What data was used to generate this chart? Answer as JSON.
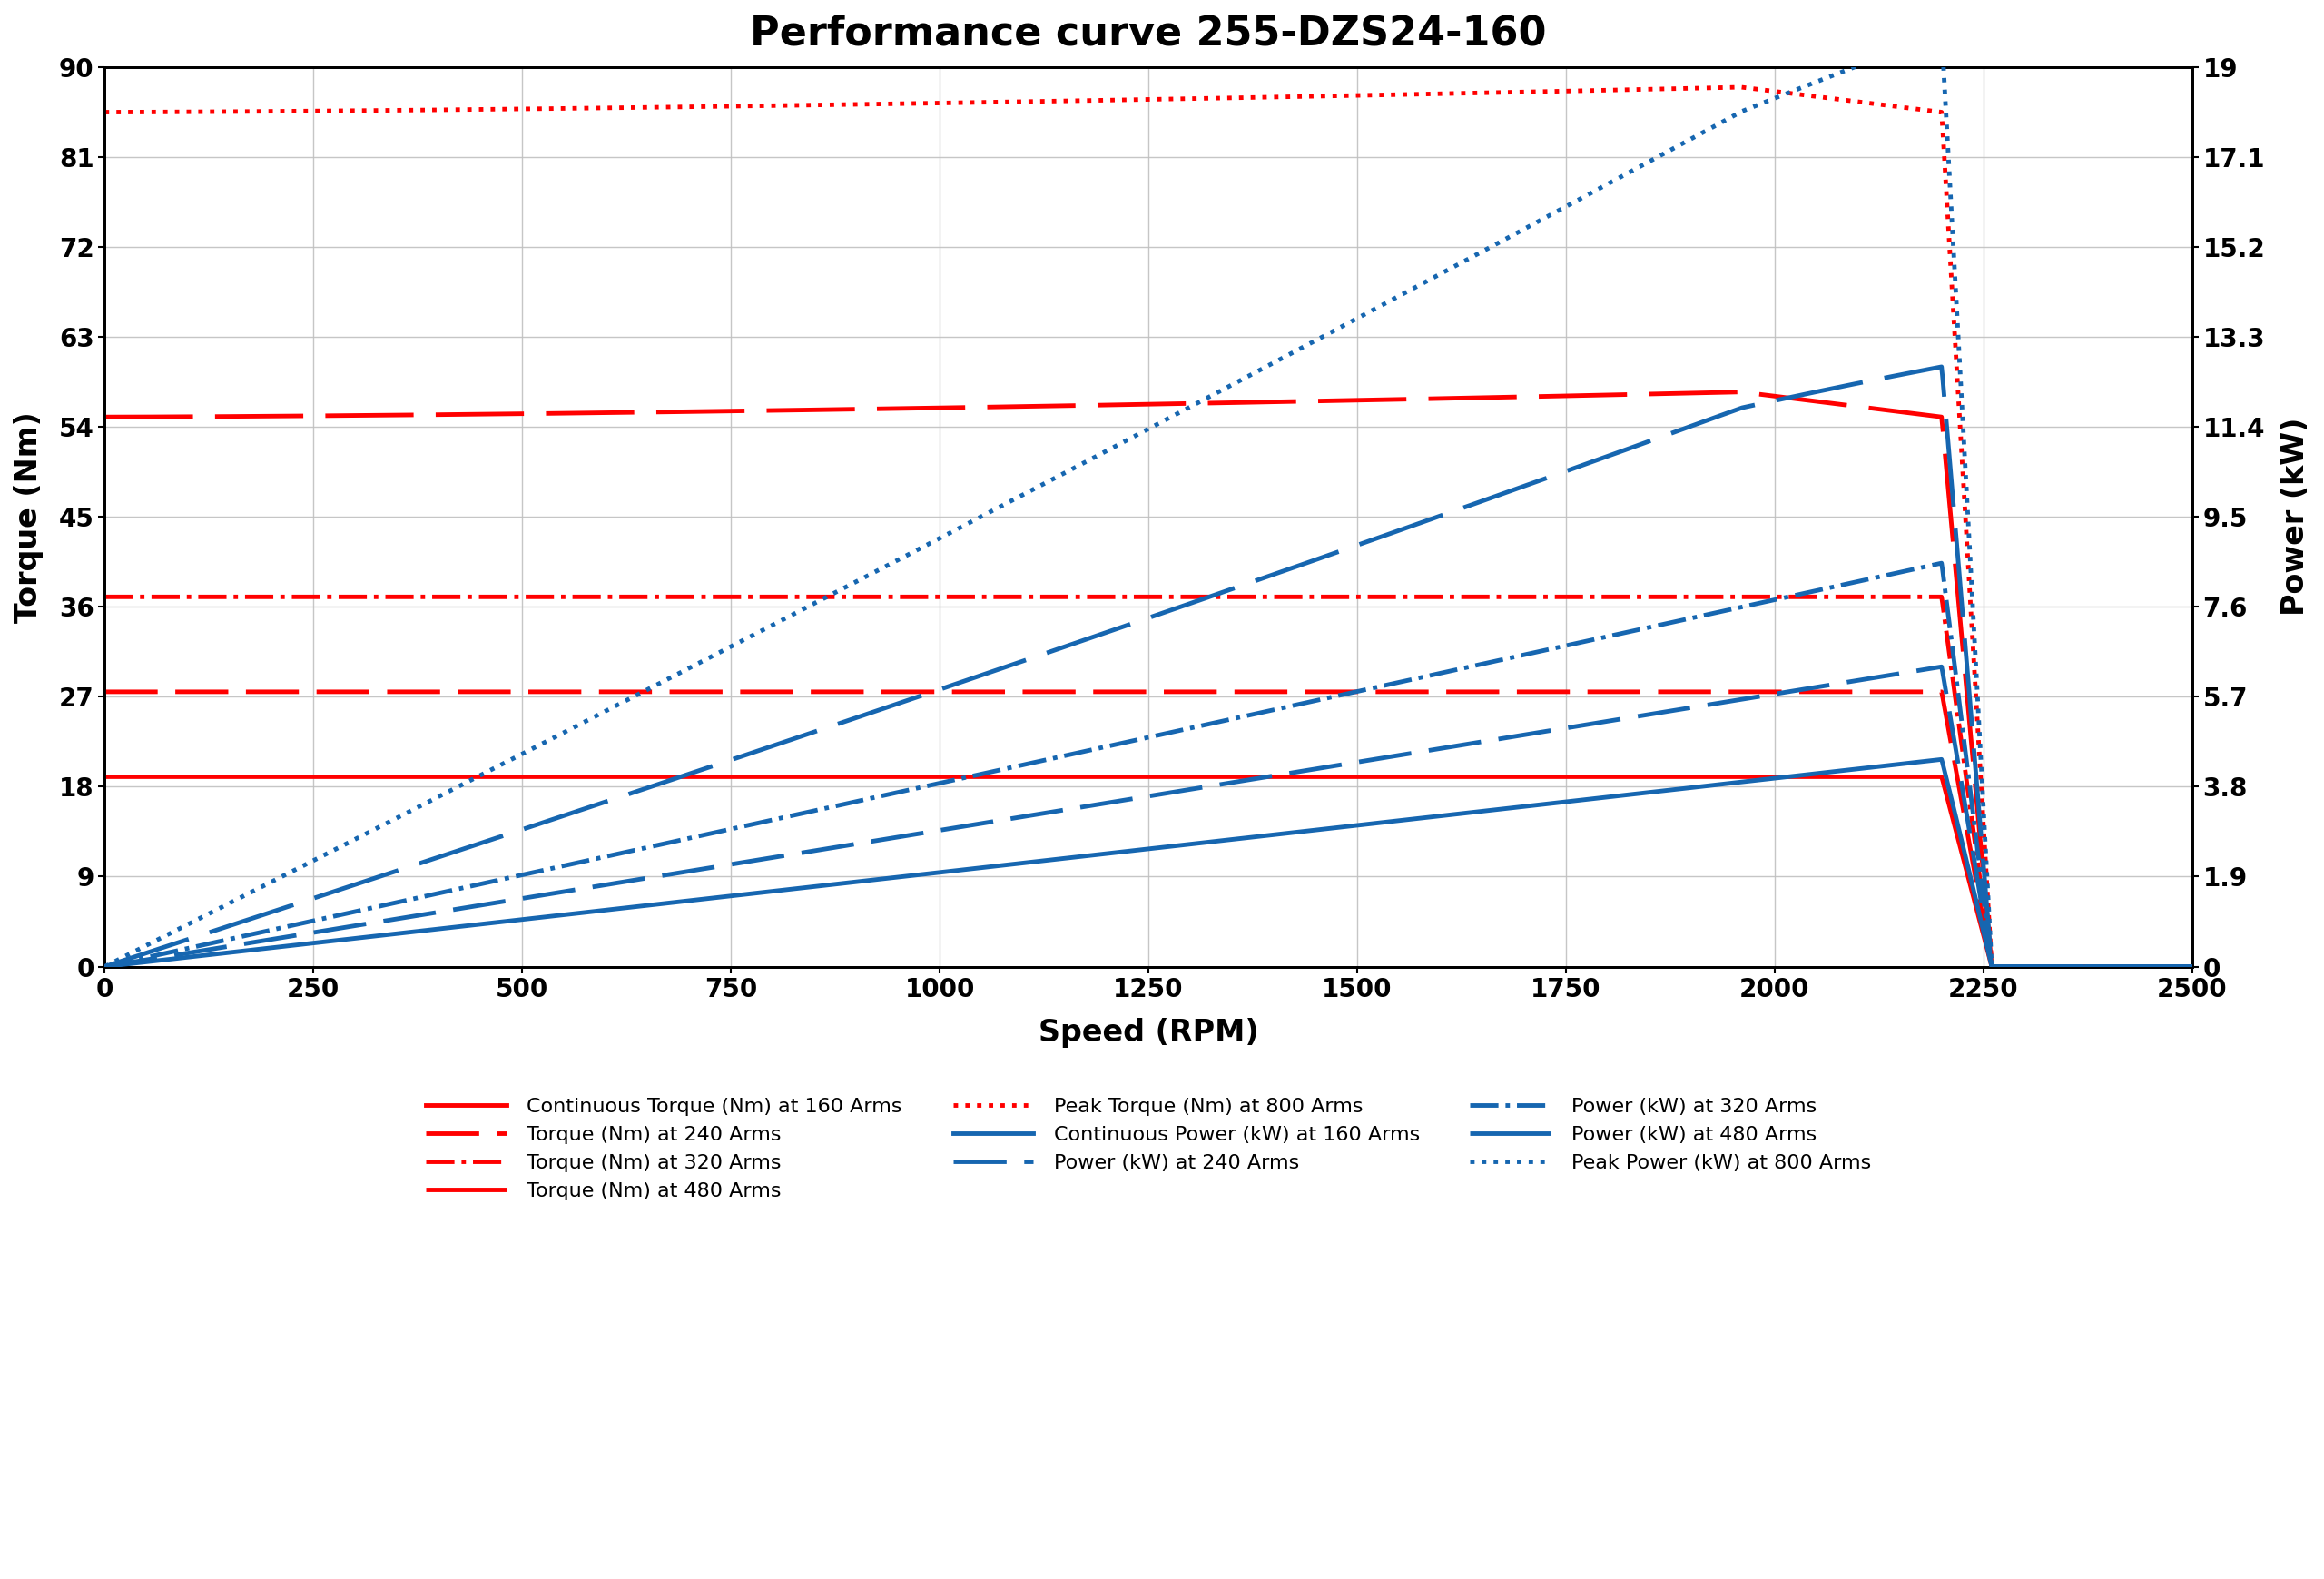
{
  "title": "Performance curve 255-DZS24-160",
  "xlabel": "Speed (RPM)",
  "ylabel_left": "Torque (Nm)",
  "ylabel_right": "Power (kW)",
  "xlim": [
    0,
    2500
  ],
  "ylim_torque": [
    0,
    90
  ],
  "ylim_power": [
    0,
    19
  ],
  "yticks_torque": [
    0,
    9,
    18,
    27,
    36,
    45,
    54,
    63,
    72,
    81,
    90
  ],
  "yticks_power": [
    0,
    1.9,
    3.8,
    5.7,
    7.6,
    9.5,
    11.4,
    13.3,
    15.2,
    17.1,
    19
  ],
  "xticks": [
    0,
    250,
    500,
    750,
    1000,
    1250,
    1500,
    1750,
    2000,
    2250,
    2500
  ],
  "base_speed": 2200,
  "cutoff_speed": 2260,
  "torque_continuous_160": 19.0,
  "torque_240": 27.5,
  "torque_320": 37.0,
  "torque_480": 55.0,
  "torque_480_peak": 57.5,
  "torque_480_peak_rpm": 1960,
  "torque_800": 85.5,
  "torque_800_peak": 88.0,
  "torque_800_peak_rpm": 1960,
  "colors": {
    "red": "#FF0000",
    "blue": "#1666B0"
  },
  "background_color": "#FFFFFF",
  "grid_color": "#C0C0C0",
  "title_fontsize": 32,
  "label_fontsize": 24,
  "tick_fontsize": 20,
  "legend_fontsize": 16,
  "linewidth": 3.5
}
